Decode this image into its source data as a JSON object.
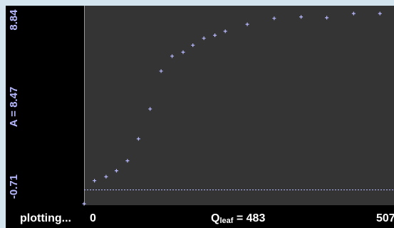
{
  "status_text": "plotting...",
  "colors": {
    "points": "#b7b9ff",
    "axis_text": "#b7b9ff",
    "x_text": "#ffffff",
    "background": "#343434",
    "frame": "#000000",
    "outer": "#d4e5f0"
  },
  "chart_data": {
    "type": "scatter",
    "x_axis": {
      "tick_min": "0",
      "tick_max": "507",
      "label_var": "Q",
      "label_sub": "leaf",
      "label_value": "483",
      "range": [
        0,
        507
      ]
    },
    "y_axis": {
      "tick_min": "-0.71",
      "tick_max": "8.84",
      "label": "A = 8.47",
      "range": [
        -0.71,
        8.84
      ]
    },
    "baseline_y": 0,
    "grid": false,
    "points": [
      {
        "x": 0,
        "y": -0.71
      },
      {
        "x": 17,
        "y": 0.45
      },
      {
        "x": 36,
        "y": 0.65
      },
      {
        "x": 53,
        "y": 0.95
      },
      {
        "x": 71,
        "y": 1.45
      },
      {
        "x": 89,
        "y": 2.55
      },
      {
        "x": 108,
        "y": 4.05
      },
      {
        "x": 126,
        "y": 5.95
      },
      {
        "x": 144,
        "y": 6.7
      },
      {
        "x": 162,
        "y": 6.9
      },
      {
        "x": 178,
        "y": 7.25
      },
      {
        "x": 196,
        "y": 7.6
      },
      {
        "x": 214,
        "y": 7.75
      },
      {
        "x": 231,
        "y": 7.95
      },
      {
        "x": 267,
        "y": 8.3
      },
      {
        "x": 311,
        "y": 8.6
      },
      {
        "x": 355,
        "y": 8.67
      },
      {
        "x": 397,
        "y": 8.63
      },
      {
        "x": 441,
        "y": 8.84
      },
      {
        "x": 484,
        "y": 8.84
      }
    ]
  }
}
